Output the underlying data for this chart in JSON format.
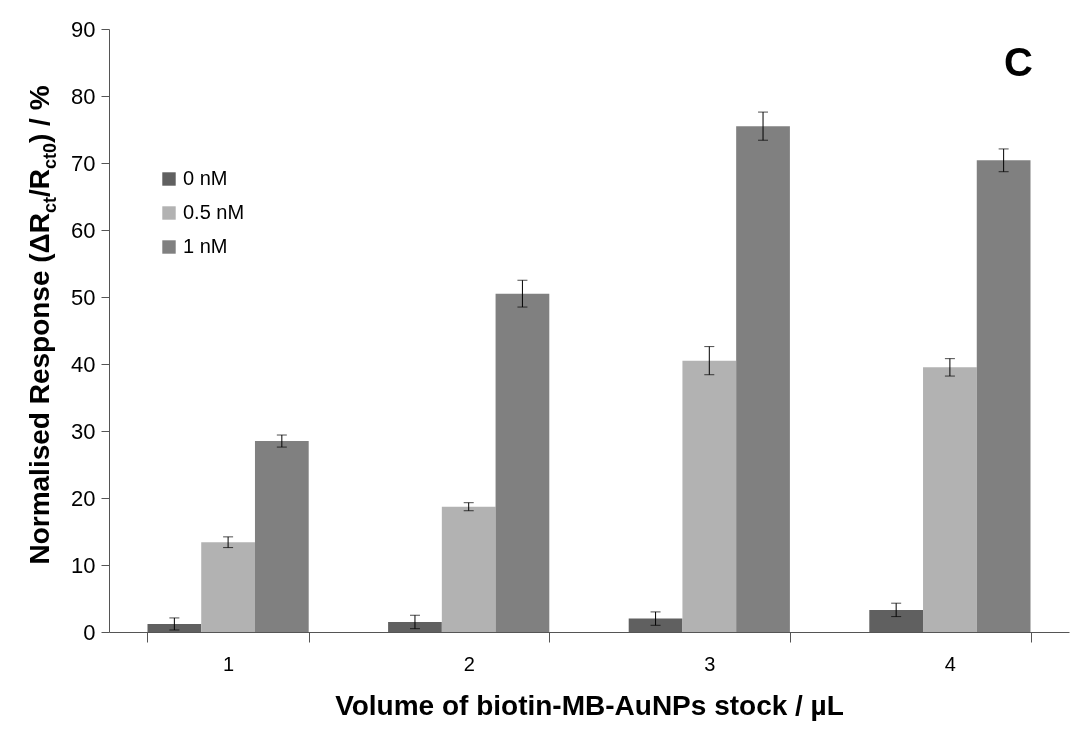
{
  "chart_data": {
    "type": "bar",
    "xlabel": "Volume of biotin-MB-AuNPs stock / µL",
    "ylabel": "Normalised Response  (ΔR$_{ct}$/R$_{ct0}$) / %",
    "annotations": [
      "C"
    ],
    "categories": [
      "1",
      "2",
      "3",
      "4"
    ],
    "series": [
      {
        "name": "0 nM",
        "color": "#606060",
        "values": [
          1.2,
          1.5,
          2.0,
          3.3
        ],
        "errors": [
          0.9,
          1.0,
          1.0,
          1.0
        ]
      },
      {
        "name": "0.5 nM",
        "color": "#b2b2b2",
        "values": [
          13.4,
          18.7,
          40.5,
          39.5
        ],
        "errors": [
          0.8,
          0.6,
          2.1,
          1.3
        ]
      },
      {
        "name": "1 nM",
        "color": "#808080",
        "values": [
          28.5,
          50.5,
          75.5,
          70.4
        ],
        "errors": [
          0.9,
          2.0,
          2.1,
          1.7
        ]
      }
    ],
    "ylim": [
      0,
      90
    ],
    "yticks": [
      0,
      10,
      20,
      30,
      40,
      50,
      60,
      70,
      80,
      90
    ],
    "grid": false,
    "legend": "top left"
  }
}
